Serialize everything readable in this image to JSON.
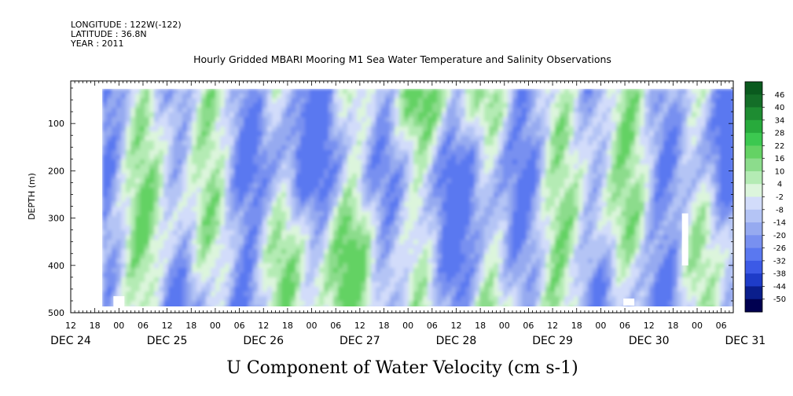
{
  "header": {
    "longitude": "LONGITUDE : 122W(-122)",
    "latitude": "LATITUDE : 36.8N",
    "year": "YEAR : 2011"
  },
  "chart_data": {
    "type": "heatmap",
    "title": "Hourly Gridded MBARI Mooring M1 Sea Water Temperature and Salinity Observations",
    "variable_label": "U Component of Water Velocity (cm s-1)",
    "ylabel": "DEPTH (m)",
    "y_axis": {
      "ticks": [
        100,
        200,
        300,
        400,
        500
      ],
      "range": [
        500,
        10
      ],
      "inverted": true
    },
    "x_axis": {
      "hour_labels": [
        "12",
        "18",
        "00",
        "06",
        "12",
        "18",
        "00",
        "06",
        "12",
        "18",
        "00",
        "06",
        "12",
        "18",
        "00",
        "06",
        "12",
        "18",
        "00",
        "06",
        "12",
        "18",
        "00",
        "06",
        "12",
        "18",
        "00",
        "06"
      ],
      "day_labels": [
        "DEC 24",
        "DEC 25",
        "DEC 26",
        "DEC 27",
        "DEC 28",
        "DEC 29",
        "DEC 30",
        "DEC 31"
      ],
      "start": "2011-12-24 12:00",
      "end": "2011-12-31 09:00",
      "data_start": "2011-12-24 21:00"
    },
    "colorbar": {
      "labels": [
        "46",
        "40",
        "34",
        "28",
        "22",
        "16",
        "10",
        "4",
        "-2",
        "-8",
        "-14",
        "-20",
        "-26",
        "-32",
        "-38",
        "-44",
        "-50"
      ],
      "levels": [
        -50,
        46
      ],
      "colors": [
        "#000050",
        "#0a1e8c",
        "#1e3cc8",
        "#3c5ae6",
        "#5a78f0",
        "#7890f0",
        "#96aaf0",
        "#b4c4f5",
        "#d2dcfa",
        "#dcf5dc",
        "#b4ebb4",
        "#8cdc8c",
        "#64d264",
        "#3cc850",
        "#28aa3c",
        "#1e8c32",
        "#146e28",
        "#0a5a1e"
      ]
    },
    "series": [
      {
        "depth_band": "upper (10-130 m)",
        "pattern": "alternating green and blue streaks"
      },
      {
        "depth_band": "middle (150-300 m)",
        "pattern": "predominantly blue with green patches"
      },
      {
        "depth_band": "lower (300-490 m)",
        "pattern": "mixed green and blue vertical bands"
      }
    ],
    "missing_data": [
      {
        "time": "2011-12-25 00:00",
        "depth": "465-490 m"
      },
      {
        "time": "2011-12-30 07:00",
        "depth": "470-485 m"
      },
      {
        "time": "2011-12-30 21:00",
        "depth": "290-400 m"
      }
    ]
  }
}
